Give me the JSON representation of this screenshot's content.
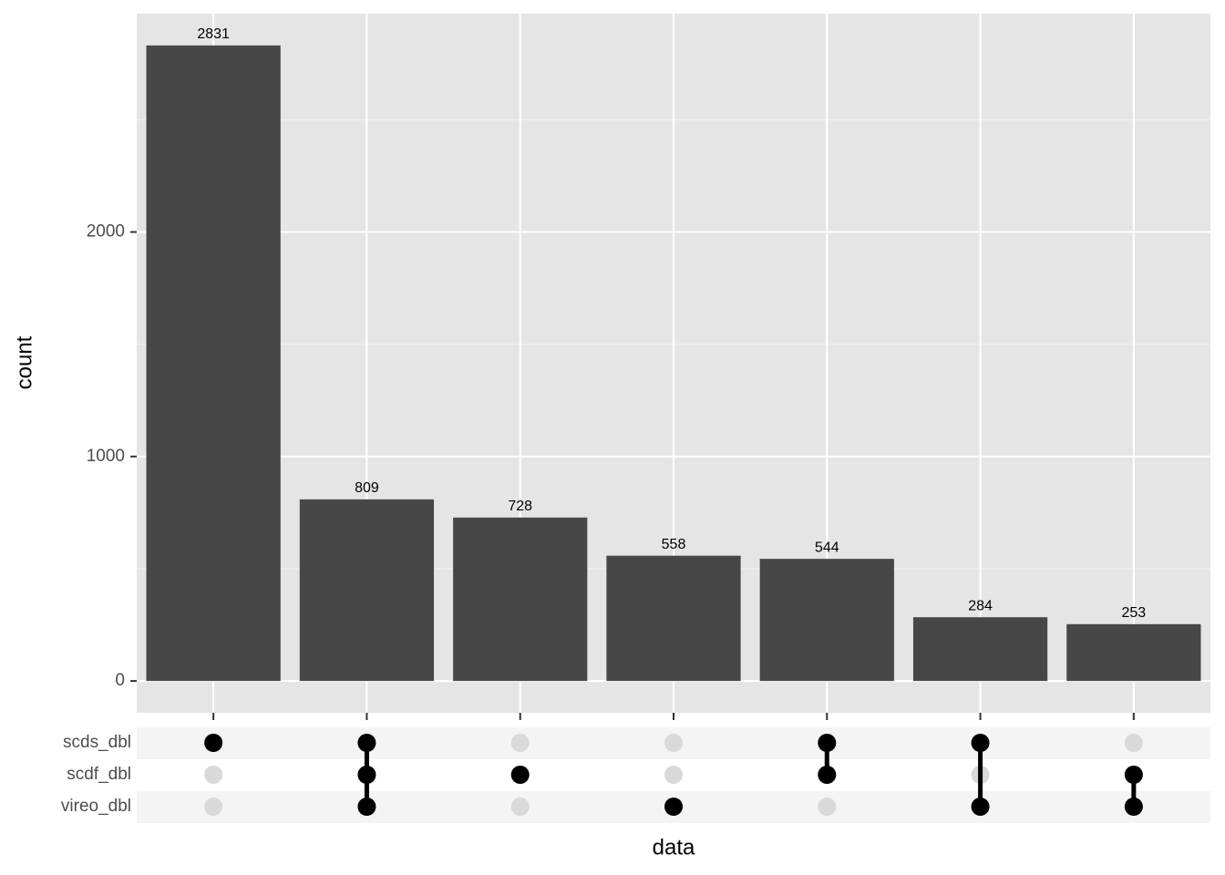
{
  "chart_data": {
    "type": "upset",
    "x_label": "data",
    "y_label": "count",
    "values": [
      2831,
      809,
      728,
      558,
      544,
      284,
      253
    ],
    "value_labels": [
      "2831",
      "809",
      "728",
      "558",
      "544",
      "284",
      "253"
    ],
    "sets": [
      "scds_dbl",
      "scdf_dbl",
      "vireo_dbl"
    ],
    "intersections": [
      [
        "scds_dbl"
      ],
      [
        "scds_dbl",
        "scdf_dbl",
        "vireo_dbl"
      ],
      [
        "scdf_dbl"
      ],
      [
        "vireo_dbl"
      ],
      [
        "scds_dbl",
        "scdf_dbl"
      ],
      [
        "scds_dbl",
        "vireo_dbl"
      ],
      [
        "scdf_dbl",
        "vireo_dbl"
      ]
    ],
    "color": "#474747",
    "ylim": [
      -141.55,
      2972.55
    ],
    "yticks": [
      0,
      1000,
      2000
    ],
    "grid": true
  }
}
